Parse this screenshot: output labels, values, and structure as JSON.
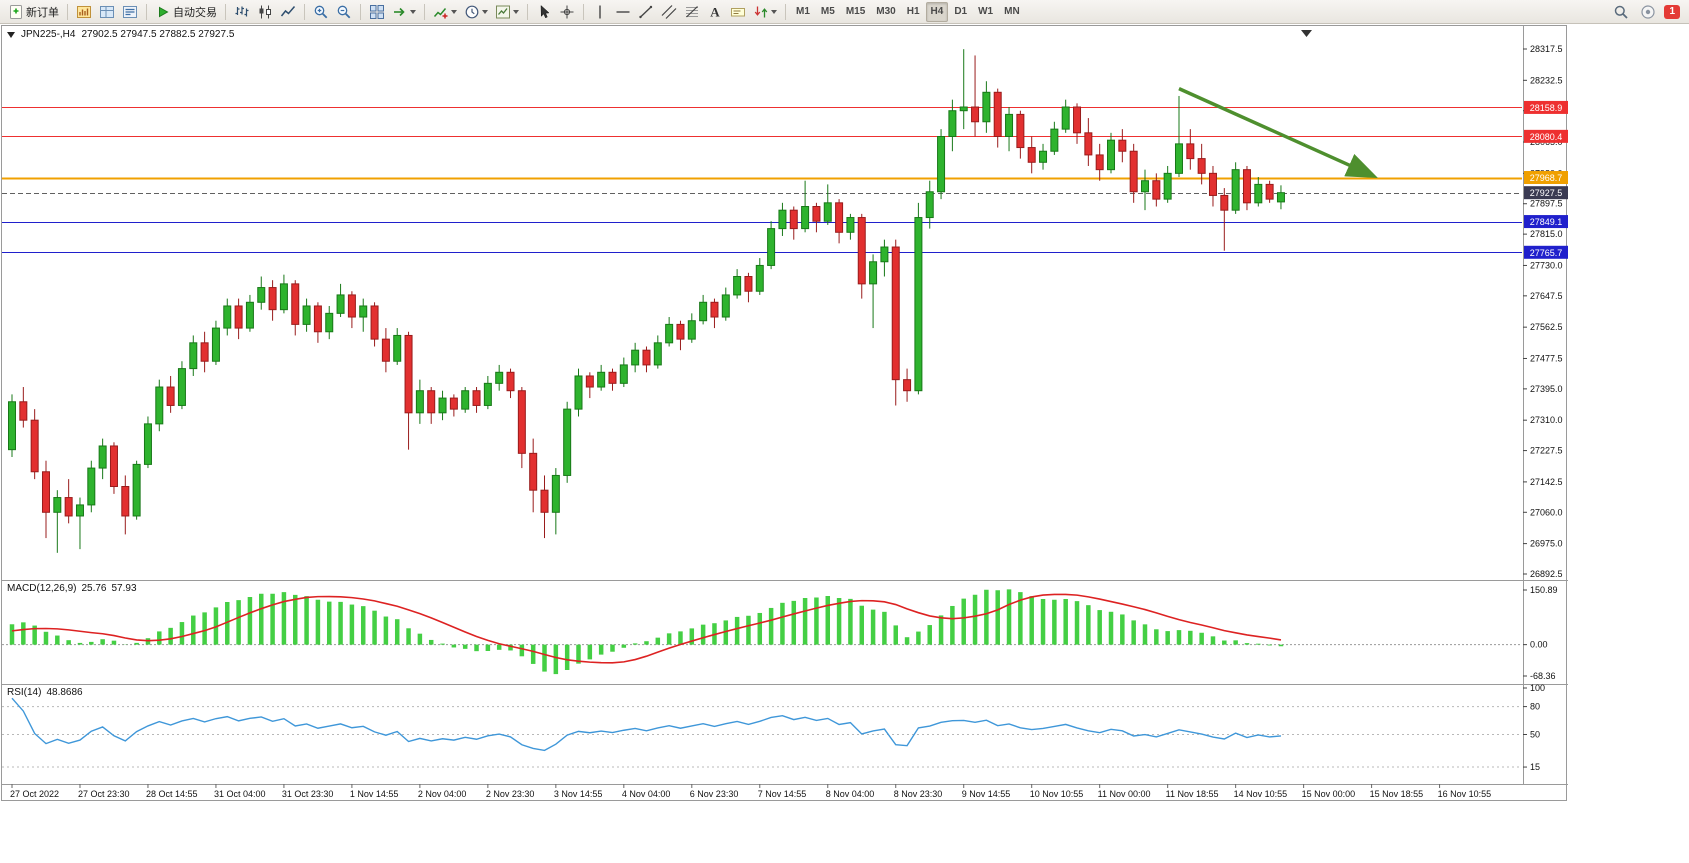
{
  "toolbar": {
    "groups": [
      {
        "name": "order-group",
        "items": [
          {
            "name": "new-order-button",
            "icon": "new-order-icon",
            "label": "新订单"
          }
        ]
      },
      {
        "name": "windows-group",
        "items": [
          {
            "name": "new-chart-button",
            "icon": "new-chart-icon"
          },
          {
            "name": "profiles-button",
            "icon": "profiles-icon"
          },
          {
            "name": "data-window-button",
            "icon": "data-window-icon"
          }
        ]
      },
      {
        "name": "autotrading-group",
        "items": [
          {
            "name": "autotrading-button",
            "icon": "autotrading-icon",
            "label": "自动交易"
          }
        ]
      },
      {
        "name": "chart-type-group",
        "items": [
          {
            "name": "bar-chart-button",
            "icon": "bar-chart-icon"
          },
          {
            "name": "candle-chart-button",
            "icon": "candle-chart-icon"
          },
          {
            "name": "line-chart-button",
            "icon": "line-chart-icon"
          }
        ]
      },
      {
        "name": "zoom-group",
        "items": [
          {
            "name": "zoom-in-button",
            "icon": "zoom-in-icon"
          },
          {
            "name": "zoom-out-button",
            "icon": "zoom-out-icon"
          }
        ]
      },
      {
        "name": "window-layout-group",
        "items": [
          {
            "name": "tile-windows-button",
            "icon": "tile-windows-icon"
          },
          {
            "name": "auto-scroll-button",
            "icon": "auto-scroll-icon",
            "caret": true
          }
        ]
      },
      {
        "name": "chart-tools-group",
        "items": [
          {
            "name": "indicators-button",
            "icon": "indicators-icon",
            "caret": true
          },
          {
            "name": "periods-button",
            "icon": "periods-icon",
            "caret": true
          },
          {
            "name": "templates-button",
            "icon": "templates-icon",
            "caret": true
          }
        ]
      },
      {
        "name": "cursor-group",
        "items": [
          {
            "name": "cursor-button",
            "icon": "cursor-icon"
          },
          {
            "name": "crosshair-button",
            "icon": "crosshair-icon"
          }
        ]
      },
      {
        "name": "objects-group",
        "items": [
          {
            "name": "vertical-line-button",
            "icon": "vline-icon"
          },
          {
            "name": "horizontal-line-button",
            "icon": "hline-icon"
          },
          {
            "name": "trendline-button",
            "icon": "trendline-icon"
          },
          {
            "name": "channel-button",
            "icon": "channel-icon"
          },
          {
            "name": "fibonacci-button",
            "icon": "fibonacci-icon"
          },
          {
            "name": "text-button",
            "icon": "text-icon"
          },
          {
            "name": "label-button",
            "icon": "label-icon"
          },
          {
            "name": "arrows-button",
            "icon": "arrows-icon",
            "caret": true
          }
        ]
      },
      {
        "name": "timeframe-group",
        "items": [
          {
            "name": "tf-m1-button",
            "text": "M1"
          },
          {
            "name": "tf-m5-button",
            "text": "M5"
          },
          {
            "name": "tf-m15-button",
            "text": "M15"
          },
          {
            "name": "tf-m30-button",
            "text": "M30"
          },
          {
            "name": "tf-h1-button",
            "text": "H1"
          },
          {
            "name": "tf-h4-button",
            "text": "H4",
            "active": true
          },
          {
            "name": "tf-d1-button",
            "text": "D1"
          },
          {
            "name": "tf-w1-button",
            "text": "W1"
          },
          {
            "name": "tf-mn-button",
            "text": "MN"
          }
        ]
      }
    ],
    "right_items": [
      {
        "name": "search-button",
        "icon": "search-icon"
      },
      {
        "name": "help-button",
        "icon": "help-icon"
      },
      {
        "name": "notification-badge",
        "badge": "1"
      }
    ]
  },
  "chart_data": {
    "type": "candlestick",
    "title": "JPN225-,H4",
    "symbol": "JPN225-",
    "timeframe": "H4",
    "ohlc_text": "27902.5 27947.5 27882.5 27927.5",
    "current_bar": {
      "open": 27902.5,
      "high": 27947.5,
      "low": 27882.5,
      "close": 27927.5
    },
    "price_axis": {
      "max": 28317.5,
      "min": 26892.5,
      "ticks": [
        "28317.5",
        "28232.5",
        "28150.0",
        "28065.0",
        "27980.0",
        "27897.5",
        "27815.0",
        "27730.0",
        "27647.5",
        "27562.5",
        "27477.5",
        "27395.0",
        "27310.0",
        "27227.5",
        "27142.5",
        "27060.0",
        "26975.0",
        "26892.5"
      ]
    },
    "time_axis": {
      "bars_per_label": 6,
      "labels": [
        "27 Oct 2022",
        "27 Oct 23:30",
        "28 Oct 14:55",
        "31 Oct 04:00",
        "31 Oct 23:30",
        "1 Nov 14:55",
        "2 Nov 04:00",
        "2 Nov 23:30",
        "3 Nov 14:55",
        "4 Nov 04:00",
        "6 Nov 23:30",
        "7 Nov 14:55",
        "8 Nov 04:00",
        "8 Nov 23:30",
        "9 Nov 14:55",
        "10 Nov 10:55",
        "11 Nov 00:00",
        "11 Nov 18:55",
        "14 Nov 10:55",
        "15 Nov 00:00",
        "15 Nov 18:55",
        "16 Nov 10:55"
      ]
    },
    "levels": [
      {
        "name": "resistance-line-1",
        "price": 28158.9,
        "label": "28158.9",
        "color": "#ee3030",
        "width": 1
      },
      {
        "name": "resistance-line-2",
        "price": 28080.4,
        "label": "28080.4",
        "color": "#ee3030",
        "width": 1
      },
      {
        "name": "pivot-line",
        "price": 27968.7,
        "label": "27968.7",
        "color": "#f0a000",
        "width": 2
      },
      {
        "name": "support-line-1",
        "price": 27849.1,
        "label": "27849.1",
        "color": "#2020cc",
        "width": 1
      },
      {
        "name": "support-line-2",
        "price": 27765.7,
        "label": "27765.7",
        "color": "#2020cc",
        "width": 1
      }
    ],
    "bid_line": {
      "price": 27927.5,
      "label": "27927.5",
      "label_bg": "#3a3a52"
    },
    "trend_arrow": {
      "from_bar": 103,
      "from_price": 28210,
      "to_bar": 120,
      "to_price": 27975,
      "color": "#4e8f2e"
    },
    "candles": [
      [
        27230,
        27380,
        27210,
        27360
      ],
      [
        27360,
        27400,
        27290,
        27310
      ],
      [
        27310,
        27340,
        27150,
        27170
      ],
      [
        27170,
        27200,
        26990,
        27060
      ],
      [
        27060,
        27120,
        26950,
        27100
      ],
      [
        27100,
        27150,
        27030,
        27050
      ],
      [
        27050,
        27100,
        26960,
        27080
      ],
      [
        27080,
        27200,
        27060,
        27180
      ],
      [
        27180,
        27260,
        27150,
        27240
      ],
      [
        27240,
        27250,
        27110,
        27130
      ],
      [
        27130,
        27160,
        27000,
        27050
      ],
      [
        27050,
        27200,
        27040,
        27190
      ],
      [
        27190,
        27320,
        27180,
        27300
      ],
      [
        27300,
        27420,
        27280,
        27400
      ],
      [
        27400,
        27430,
        27330,
        27350
      ],
      [
        27350,
        27470,
        27340,
        27450
      ],
      [
        27450,
        27540,
        27430,
        27520
      ],
      [
        27520,
        27550,
        27440,
        27470
      ],
      [
        27470,
        27580,
        27460,
        27560
      ],
      [
        27560,
        27640,
        27540,
        27620
      ],
      [
        27620,
        27640,
        27530,
        27560
      ],
      [
        27560,
        27650,
        27550,
        27630
      ],
      [
        27630,
        27700,
        27610,
        27670
      ],
      [
        27670,
        27690,
        27580,
        27610
      ],
      [
        27610,
        27705,
        27600,
        27680
      ],
      [
        27680,
        27690,
        27540,
        27570
      ],
      [
        27570,
        27640,
        27550,
        27620
      ],
      [
        27620,
        27630,
        27520,
        27550
      ],
      [
        27550,
        27620,
        27530,
        27600
      ],
      [
        27600,
        27680,
        27590,
        27650
      ],
      [
        27650,
        27660,
        27560,
        27590
      ],
      [
        27590,
        27640,
        27550,
        27620
      ],
      [
        27620,
        27630,
        27510,
        27530
      ],
      [
        27530,
        27560,
        27440,
        27470
      ],
      [
        27470,
        27560,
        27460,
        27540
      ],
      [
        27540,
        27550,
        27230,
        27330
      ],
      [
        27330,
        27420,
        27300,
        27390
      ],
      [
        27390,
        27400,
        27300,
        27330
      ],
      [
        27330,
        27390,
        27310,
        27370
      ],
      [
        27370,
        27380,
        27320,
        27340
      ],
      [
        27340,
        27400,
        27330,
        27390
      ],
      [
        27390,
        27400,
        27330,
        27350
      ],
      [
        27350,
        27430,
        27340,
        27410
      ],
      [
        27410,
        27460,
        27390,
        27440
      ],
      [
        27440,
        27450,
        27370,
        27390
      ],
      [
        27390,
        27400,
        27180,
        27220
      ],
      [
        27220,
        27260,
        27060,
        27120
      ],
      [
        27120,
        27160,
        26990,
        27060
      ],
      [
        27060,
        27180,
        27000,
        27160
      ],
      [
        27160,
        27360,
        27140,
        27340
      ],
      [
        27340,
        27450,
        27320,
        27430
      ],
      [
        27430,
        27440,
        27370,
        27400
      ],
      [
        27400,
        27460,
        27390,
        27440
      ],
      [
        27440,
        27450,
        27390,
        27410
      ],
      [
        27410,
        27480,
        27400,
        27460
      ],
      [
        27460,
        27520,
        27440,
        27500
      ],
      [
        27500,
        27510,
        27440,
        27460
      ],
      [
        27460,
        27540,
        27450,
        27520
      ],
      [
        27520,
        27590,
        27510,
        27570
      ],
      [
        27570,
        27580,
        27500,
        27530
      ],
      [
        27530,
        27600,
        27520,
        27580
      ],
      [
        27580,
        27650,
        27570,
        27630
      ],
      [
        27630,
        27640,
        27560,
        27590
      ],
      [
        27590,
        27670,
        27580,
        27650
      ],
      [
        27650,
        27720,
        27640,
        27700
      ],
      [
        27700,
        27710,
        27630,
        27660
      ],
      [
        27660,
        27750,
        27650,
        27730
      ],
      [
        27730,
        27850,
        27720,
        27830
      ],
      [
        27830,
        27900,
        27810,
        27880
      ],
      [
        27880,
        27890,
        27800,
        27830
      ],
      [
        27830,
        27960,
        27820,
        27890
      ],
      [
        27890,
        27900,
        27820,
        27850
      ],
      [
        27850,
        27950,
        27840,
        27900
      ],
      [
        27900,
        27910,
        27790,
        27820
      ],
      [
        27820,
        27870,
        27800,
        27860
      ],
      [
        27860,
        27870,
        27640,
        27680
      ],
      [
        27680,
        27760,
        27560,
        27740
      ],
      [
        27740,
        27800,
        27700,
        27780
      ],
      [
        27780,
        27800,
        27350,
        27420
      ],
      [
        27420,
        27450,
        27360,
        27390
      ],
      [
        27390,
        27900,
        27380,
        27860
      ],
      [
        27860,
        27960,
        27830,
        27930
      ],
      [
        27930,
        28100,
        27910,
        28080
      ],
      [
        28080,
        28180,
        28040,
        28150
      ],
      [
        28150,
        28317,
        28100,
        28160
      ],
      [
        28160,
        28300,
        28080,
        28120
      ],
      [
        28120,
        28230,
        28090,
        28200
      ],
      [
        28200,
        28210,
        28050,
        28080
      ],
      [
        28080,
        28160,
        28040,
        28140
      ],
      [
        28140,
        28150,
        28020,
        28050
      ],
      [
        28050,
        28080,
        27980,
        28010
      ],
      [
        28010,
        28060,
        27990,
        28040
      ],
      [
        28040,
        28120,
        28030,
        28100
      ],
      [
        28100,
        28180,
        28090,
        28160
      ],
      [
        28160,
        28170,
        28060,
        28090
      ],
      [
        28090,
        28130,
        28000,
        28030
      ],
      [
        28030,
        28060,
        27960,
        27990
      ],
      [
        27990,
        28090,
        27980,
        28070
      ],
      [
        28070,
        28100,
        28010,
        28040
      ],
      [
        28040,
        28060,
        27900,
        27930
      ],
      [
        27930,
        27990,
        27880,
        27960
      ],
      [
        27960,
        27980,
        27890,
        27910
      ],
      [
        27910,
        28000,
        27900,
        27980
      ],
      [
        27980,
        28190,
        27970,
        28060
      ],
      [
        28060,
        28100,
        27990,
        28020
      ],
      [
        28020,
        28060,
        27950,
        27980
      ],
      [
        27980,
        28000,
        27890,
        27920
      ],
      [
        27920,
        27940,
        27770,
        27880
      ],
      [
        27880,
        28010,
        27870,
        27990
      ],
      [
        27990,
        28000,
        27880,
        27900
      ],
      [
        27900,
        27970,
        27890,
        27950
      ],
      [
        27950,
        27960,
        27900,
        27910
      ],
      [
        27902.5,
        27947.5,
        27882.5,
        27927.5
      ]
    ],
    "indicators": {
      "macd": {
        "label": "MACD(12,26,9)",
        "value_main": "25.76",
        "value_signal": "57.93",
        "fast": 12,
        "slow": 26,
        "signal": 9,
        "scale_labels": [
          "150.89",
          "0.00",
          "-68.36"
        ],
        "histogram_color": "#44cf44",
        "signal_color": "#dd2222"
      },
      "rsi": {
        "label": "RSI(14)",
        "value": "48.8686",
        "period": 14,
        "scale_labels": [
          "100",
          "80",
          "50",
          "15"
        ],
        "levels": [
          80,
          50,
          15
        ],
        "line_color": "#3f97d9"
      }
    }
  },
  "colors": {
    "bull": "#2eb32e",
    "bull_border": "#187818",
    "bear": "#e23030",
    "bear_border": "#991c1c",
    "axis_text": "#111111",
    "separator": "#9a9a9a",
    "chart_bg": "#ffffff"
  }
}
